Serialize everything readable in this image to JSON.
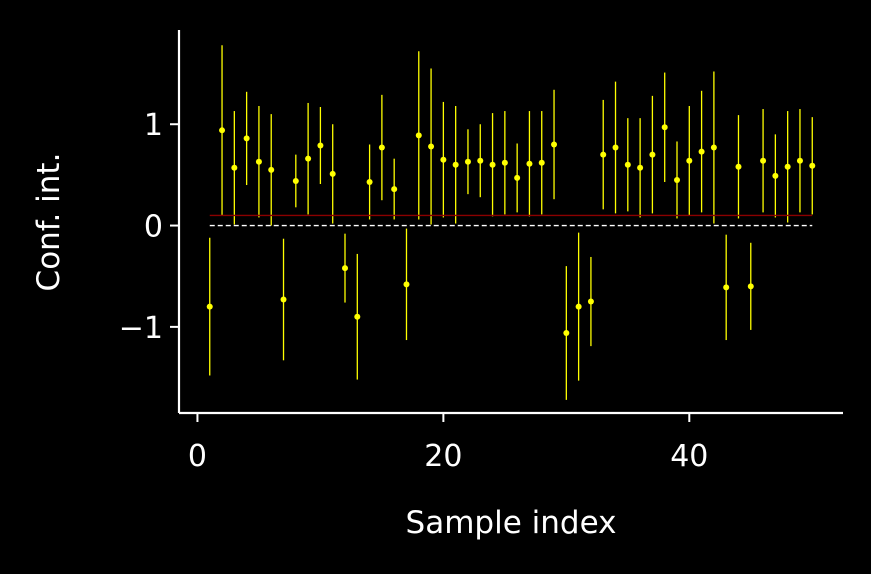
{
  "chart_data": {
    "type": "scatter",
    "title": "",
    "xlabel": "Sample index",
    "ylabel": "Conf. int.",
    "xlim": [
      -1.5,
      52.5
    ],
    "ylim": [
      -1.85,
      1.93
    ],
    "xticks": [
      0,
      20,
      40
    ],
    "xtick_labels": [
      "0",
      "20",
      "40"
    ],
    "yticks": [
      -1,
      0,
      1
    ],
    "ytick_labels": [
      "−1",
      "0",
      "1"
    ],
    "grid": false,
    "legend": "none",
    "colors": {
      "background": "#000000",
      "axes": "#ffffff",
      "points": "#ffff00",
      "reference_line": "#8b0000",
      "zero_line": "#ffffff"
    },
    "reference_line": {
      "y": 0.1,
      "x_range": [
        1,
        50
      ],
      "style": "solid"
    },
    "zero_line": {
      "y": 0,
      "x_range": [
        1,
        50
      ],
      "style": "dashed"
    },
    "series": [
      {
        "values": [
          {
            "x": 1,
            "y": -0.8,
            "low": -1.48,
            "high": -0.12
          },
          {
            "x": 2,
            "y": 0.94,
            "low": 0.1,
            "high": 1.78
          },
          {
            "x": 3,
            "y": 0.57,
            "low": 0.01,
            "high": 1.13
          },
          {
            "x": 4,
            "y": 0.86,
            "low": 0.4,
            "high": 1.32
          },
          {
            "x": 5,
            "y": 0.63,
            "low": 0.08,
            "high": 1.18
          },
          {
            "x": 6,
            "y": 0.55,
            "low": 0.0,
            "high": 1.1
          },
          {
            "x": 7,
            "y": -0.73,
            "low": -1.33,
            "high": -0.13
          },
          {
            "x": 8,
            "y": 0.44,
            "low": 0.18,
            "high": 0.7
          },
          {
            "x": 9,
            "y": 0.66,
            "low": 0.11,
            "high": 1.21
          },
          {
            "x": 10,
            "y": 0.79,
            "low": 0.41,
            "high": 1.17
          },
          {
            "x": 11,
            "y": 0.51,
            "low": 0.02,
            "high": 1.0
          },
          {
            "x": 12,
            "y": -0.42,
            "low": -0.76,
            "high": -0.08
          },
          {
            "x": 13,
            "y": -0.9,
            "low": -1.52,
            "high": -0.28
          },
          {
            "x": 14,
            "y": 0.43,
            "low": 0.06,
            "high": 0.8
          },
          {
            "x": 15,
            "y": 0.77,
            "low": 0.25,
            "high": 1.29
          },
          {
            "x": 16,
            "y": 0.36,
            "low": 0.06,
            "high": 0.66
          },
          {
            "x": 17,
            "y": -0.58,
            "low": -1.13,
            "high": -0.03
          },
          {
            "x": 18,
            "y": 0.89,
            "low": 0.06,
            "high": 1.72
          },
          {
            "x": 19,
            "y": 0.78,
            "low": 0.01,
            "high": 1.55
          },
          {
            "x": 20,
            "y": 0.65,
            "low": 0.08,
            "high": 1.22
          },
          {
            "x": 21,
            "y": 0.6,
            "low": 0.02,
            "high": 1.18
          },
          {
            "x": 22,
            "y": 0.63,
            "low": 0.31,
            "high": 0.95
          },
          {
            "x": 23,
            "y": 0.64,
            "low": 0.28,
            "high": 1.0
          },
          {
            "x": 24,
            "y": 0.6,
            "low": 0.09,
            "high": 1.11
          },
          {
            "x": 25,
            "y": 0.62,
            "low": 0.11,
            "high": 1.13
          },
          {
            "x": 26,
            "y": 0.47,
            "low": 0.13,
            "high": 0.81
          },
          {
            "x": 27,
            "y": 0.61,
            "low": 0.09,
            "high": 1.13
          },
          {
            "x": 28,
            "y": 0.62,
            "low": 0.11,
            "high": 1.13
          },
          {
            "x": 29,
            "y": 0.8,
            "low": 0.26,
            "high": 1.34
          },
          {
            "x": 30,
            "y": -1.06,
            "low": -1.72,
            "high": -0.4
          },
          {
            "x": 31,
            "y": -0.8,
            "low": -1.53,
            "high": -0.07
          },
          {
            "x": 32,
            "y": -0.75,
            "low": -1.19,
            "high": -0.31
          },
          {
            "x": 33,
            "y": 0.7,
            "low": 0.16,
            "high": 1.24
          },
          {
            "x": 34,
            "y": 0.77,
            "low": 0.12,
            "high": 1.42
          },
          {
            "x": 35,
            "y": 0.6,
            "low": 0.14,
            "high": 1.06
          },
          {
            "x": 36,
            "y": 0.57,
            "low": 0.08,
            "high": 1.06
          },
          {
            "x": 37,
            "y": 0.7,
            "low": 0.12,
            "high": 1.28
          },
          {
            "x": 38,
            "y": 0.97,
            "low": 0.43,
            "high": 1.51
          },
          {
            "x": 39,
            "y": 0.45,
            "low": 0.07,
            "high": 0.83
          },
          {
            "x": 40,
            "y": 0.64,
            "low": 0.1,
            "high": 1.18
          },
          {
            "x": 41,
            "y": 0.73,
            "low": 0.13,
            "high": 1.33
          },
          {
            "x": 42,
            "y": 0.77,
            "low": 0.02,
            "high": 1.52
          },
          {
            "x": 43,
            "y": -0.61,
            "low": -1.13,
            "high": -0.09
          },
          {
            "x": 44,
            "y": 0.58,
            "low": 0.07,
            "high": 1.09
          },
          {
            "x": 45,
            "y": -0.6,
            "low": -1.03,
            "high": -0.17
          },
          {
            "x": 46,
            "y": 0.64,
            "low": 0.13,
            "high": 1.15
          },
          {
            "x": 47,
            "y": 0.49,
            "low": 0.08,
            "high": 0.9
          },
          {
            "x": 48,
            "y": 0.58,
            "low": 0.03,
            "high": 1.13
          },
          {
            "x": 49,
            "y": 0.64,
            "low": 0.13,
            "high": 1.15
          },
          {
            "x": 50,
            "y": 0.59,
            "low": 0.11,
            "high": 1.07
          }
        ]
      }
    ]
  }
}
